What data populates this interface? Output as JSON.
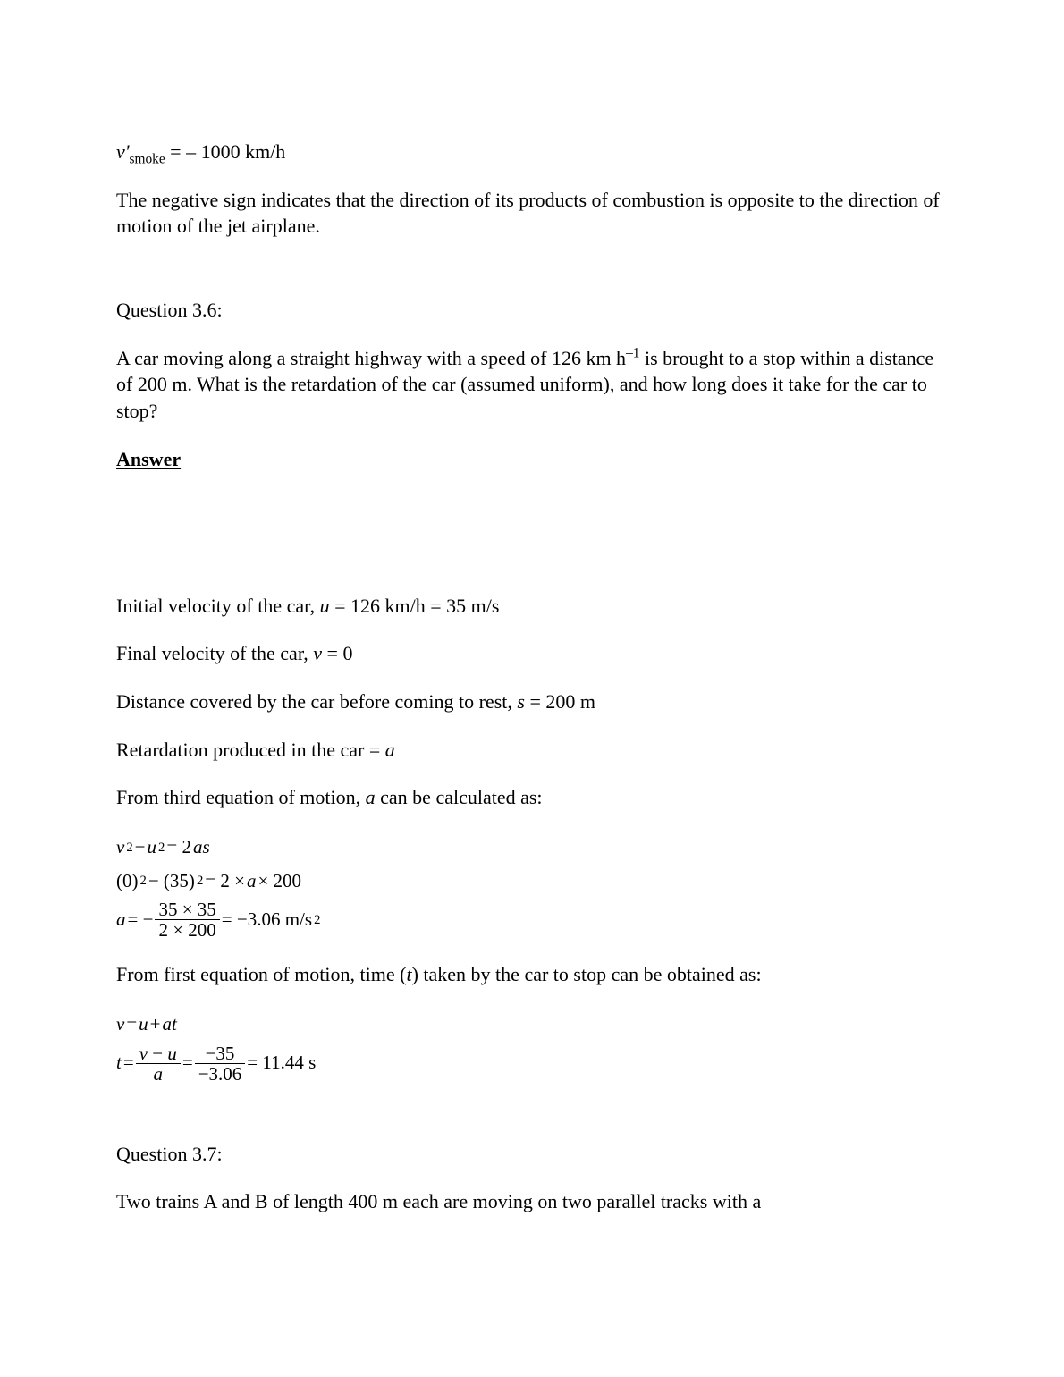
{
  "intro": {
    "smoke_eq": {
      "lhs_var": "v'",
      "lhs_sub": "smoke",
      "rhs": "= – 1000 km/h"
    },
    "explanation": "The negative sign indicates that the direction of its products of combustion is opposite to the direction of motion of the jet airplane."
  },
  "q36": {
    "title": "Question 3.6:",
    "text_pre": "A car moving along a straight highway with a speed of 126 km h",
    "text_sup": "–1",
    "text_post": " is brought to a stop within a distance of 200 m. What is the retardation of the car (assumed uniform), and how long does it take for the car to stop?",
    "answer_label": "Answer",
    "line_u_pre": "Initial velocity of the car, ",
    "line_u_var": "u",
    "line_u_post": " = 126 km/h = 35 m/s",
    "line_v_pre": "Final velocity of the car, ",
    "line_v_var": "v",
    "line_v_post": " = 0",
    "line_s_pre": "Distance covered by the car before coming to rest, ",
    "line_s_var": "s",
    "line_s_post": " = 200 m",
    "line_a_pre": "Retardation produced in the car = ",
    "line_a_var": "a",
    "line_eq3_pre": "From third equation of motion, ",
    "line_eq3_var": "a",
    "line_eq3_post": " can be calculated as:",
    "eq_block1": {
      "l1_lhs": "v",
      "l1_lhs_sup": "2",
      "l1_mid": " − ",
      "l1_rhs": "u",
      "l1_rhs_sup": "2",
      "l1_eq": " = 2",
      "l1_as": "as",
      "l2_a": "(0)",
      "l2_a_sup": "2",
      "l2_mid": " − (35)",
      "l2_b_sup": "2",
      "l2_rhs_pre": " = 2 × ",
      "l2_rhs_var": "a",
      "l2_rhs_post": " × 200",
      "l3_lhs": "a",
      "l3_eq1": " = −",
      "l3_num": "35 × 35",
      "l3_den": "2 × 200",
      "l3_eq2": " = −3.06 m/s",
      "l3_sup": "2"
    },
    "line_eq1_pre": "From first equation of motion, time (",
    "line_eq1_var": "t",
    "line_eq1_post": ") taken by the car to stop can be obtained as:",
    "eq_block2": {
      "l1_v": "v",
      "l1_eq": " = ",
      "l1_u": "u",
      "l1_plus": " + ",
      "l1_at": "at",
      "l2_t": "t",
      "l2_eq1": " = ",
      "l2_num1_a": "v",
      "l2_num1_mid": " − ",
      "l2_num1_b": "u",
      "l2_den1": "a",
      "l2_eq2": " = ",
      "l2_num2": "−35",
      "l2_den2": "−3.06",
      "l2_eq3": " = 11.44 s"
    }
  },
  "q37": {
    "title": "Question 3.7:",
    "text": "Two trains A and B of length 400 m each are moving on two parallel tracks with a"
  }
}
